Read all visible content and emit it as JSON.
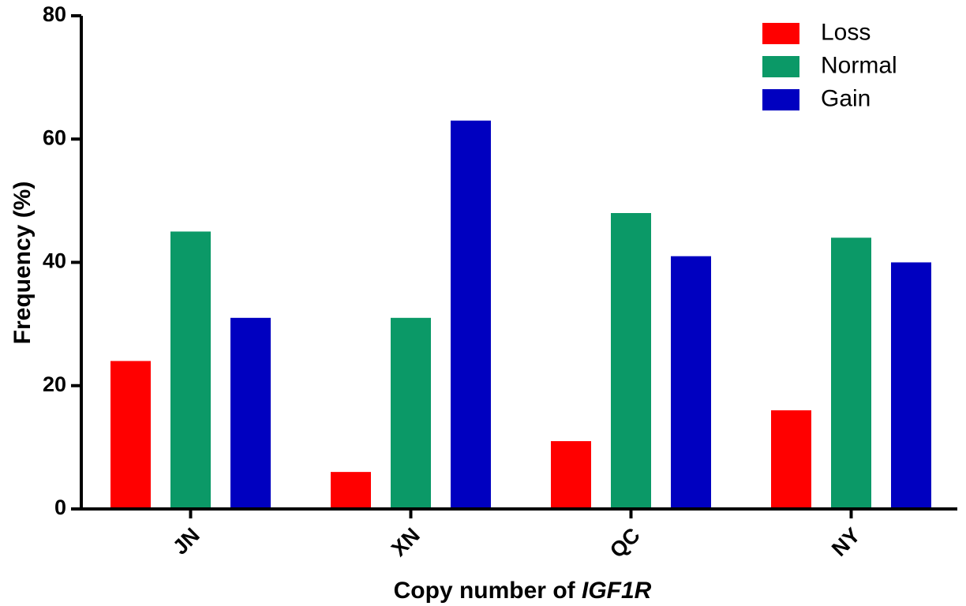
{
  "chart_data": {
    "type": "bar",
    "categories": [
      "JN",
      "XN",
      "QC",
      "NY"
    ],
    "series": [
      {
        "name": "Loss",
        "color": "#ff0000",
        "values": [
          24,
          6,
          11,
          16
        ]
      },
      {
        "name": "Normal",
        "color": "#0b9967",
        "values": [
          45,
          31,
          48,
          44
        ]
      },
      {
        "name": "Gain",
        "color": "#0000c0",
        "values": [
          31,
          63,
          41,
          40
        ]
      }
    ],
    "xlabel_prefix": "Copy number of ",
    "xlabel_gene": "IGF1R",
    "ylabel": "Frequency (%)",
    "ylim": [
      0,
      80
    ],
    "yticks": [
      0,
      20,
      40,
      60,
      80
    ],
    "grid": false,
    "legend_position": "top-right"
  }
}
